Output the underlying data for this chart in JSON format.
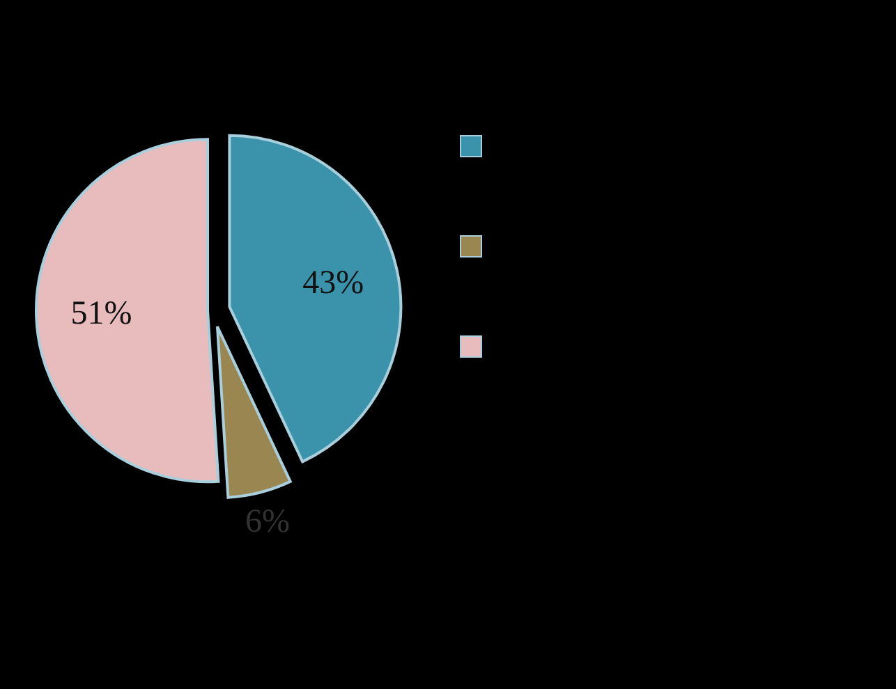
{
  "chart_data": {
    "type": "pie",
    "categories": [
      null,
      null,
      null
    ],
    "values": [
      43,
      6,
      51
    ],
    "colors": [
      "#3a93ab",
      "#9a8650",
      "#e8bcbc"
    ],
    "value_labels": [
      "43%",
      "6%",
      "51%"
    ]
  }
}
